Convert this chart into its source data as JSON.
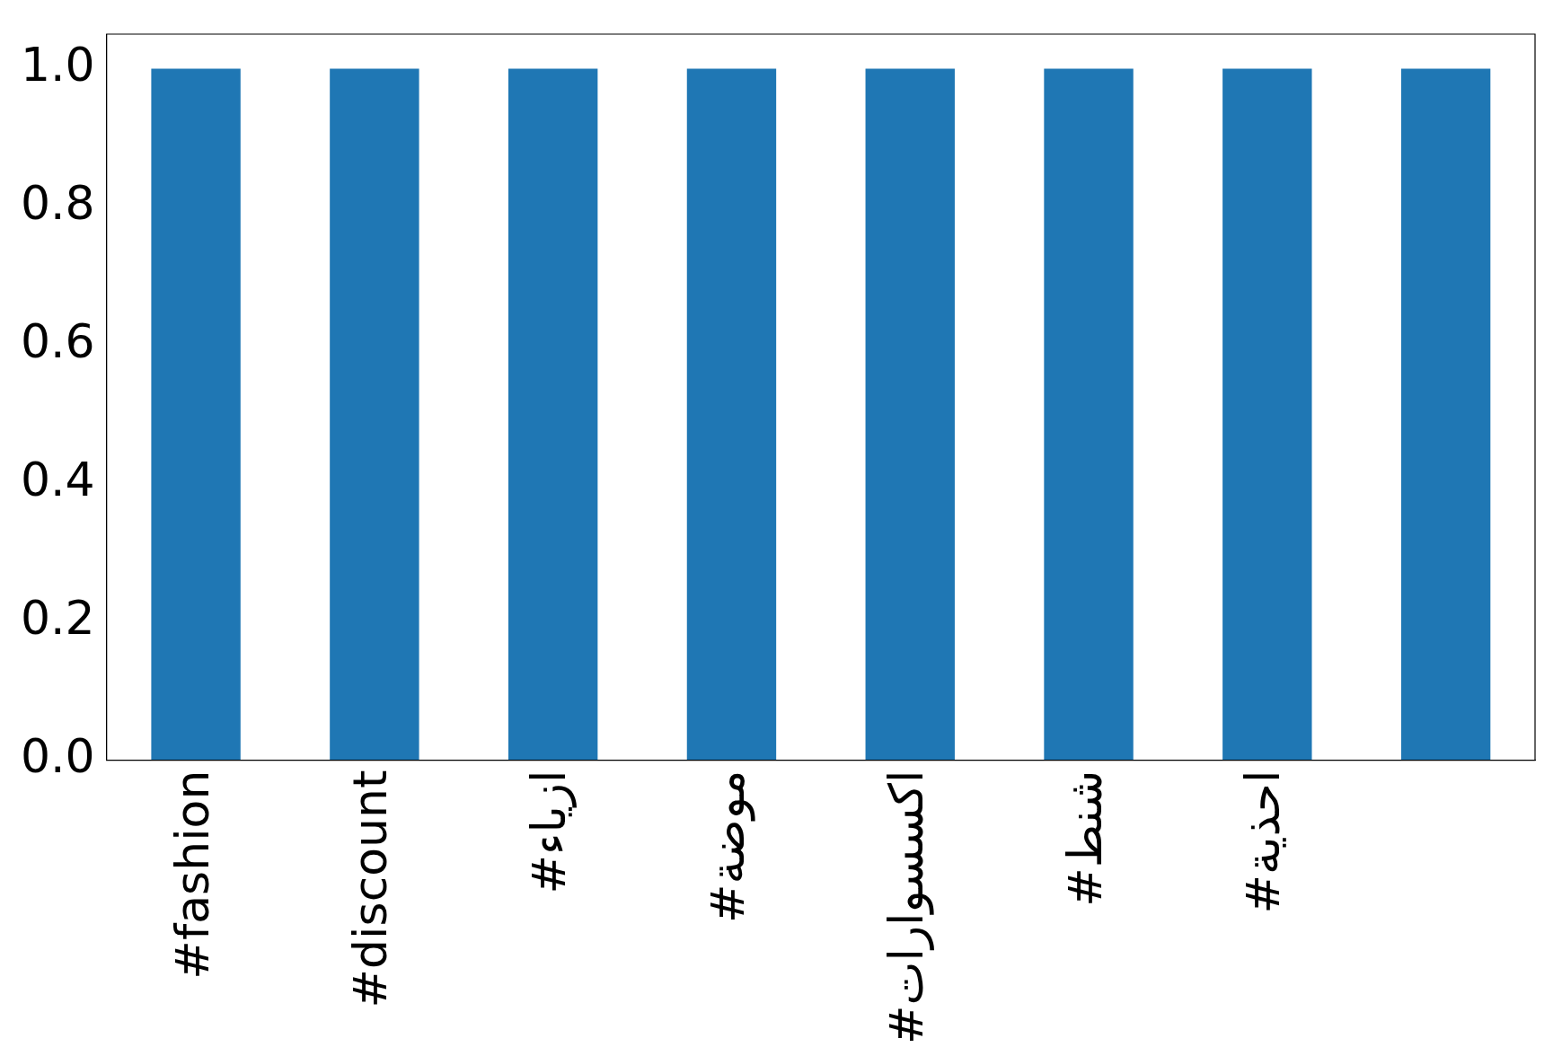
{
  "chart_data": {
    "type": "bar",
    "categories": [
      "#fashion",
      "#discount",
      "#ازياء",
      "#موضة",
      "#اكسسوارات",
      "#شنط",
      "#احذية",
      null
    ],
    "values": [
      1,
      1,
      1,
      1,
      1,
      1,
      1,
      1
    ],
    "color": "#1f77b4",
    "ylim": [
      0,
      1.05
    ],
    "yticks": [
      {
        "value": 0,
        "label": "0.0"
      },
      {
        "value": 0.2,
        "label": "0.2"
      },
      {
        "value": 0.4,
        "label": "0.4"
      },
      {
        "value": 0.6,
        "label": "0.6"
      },
      {
        "value": 0.8,
        "label": "0.8"
      },
      {
        "value": 1,
        "label": "1.0"
      }
    ],
    "grid": false,
    "legend": false
  }
}
